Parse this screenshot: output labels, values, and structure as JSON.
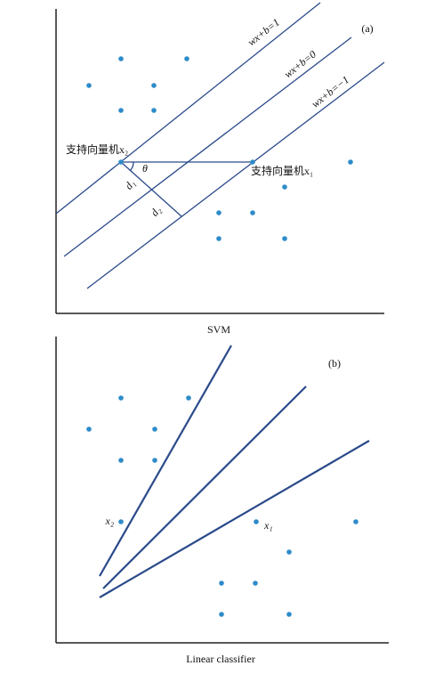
{
  "panel_a": {
    "label": "(a)",
    "line_labels": [
      "wx+b=1",
      "wx+b=0",
      "wx+b=−1"
    ],
    "support_vector_2": "支持向量机x₂",
    "support_vector_1": "支持向量机x₁",
    "angle": "θ",
    "d1": "d₁",
    "d2": "d₂",
    "caption": "SVM"
  },
  "panel_b": {
    "label": "(b)",
    "point_2": "x₂",
    "point_1": "x₁",
    "caption": "Linear classifier"
  }
}
